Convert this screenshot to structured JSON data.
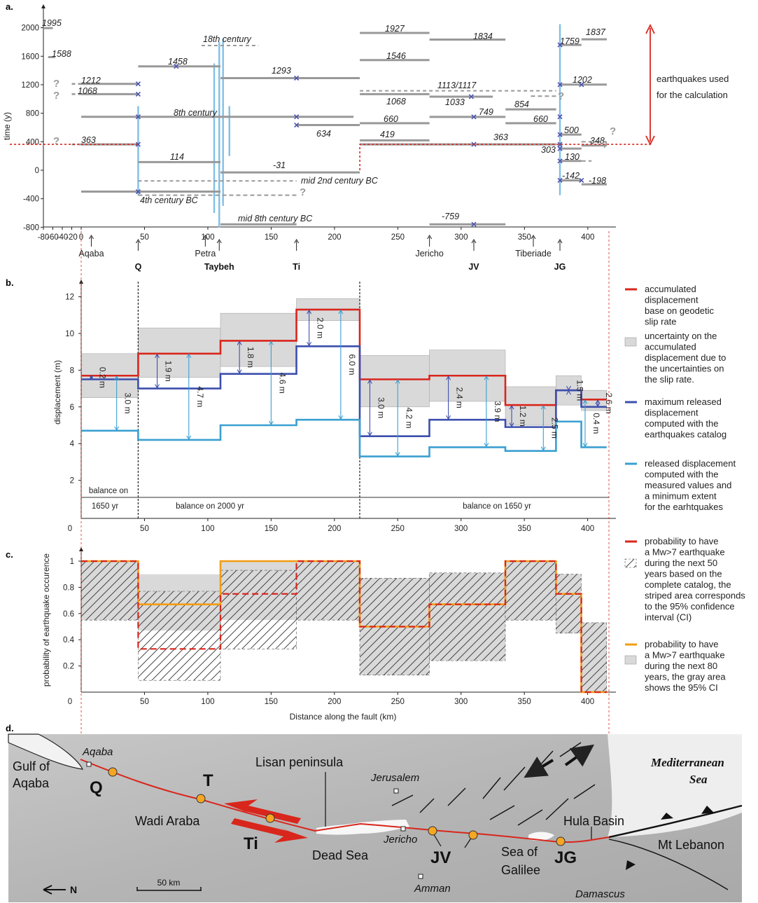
{
  "panels": {
    "a": "a.",
    "b": "b.",
    "c": "c.",
    "d": "d."
  },
  "colors": {
    "geodetic": "#d9261c",
    "catalog": "#3c4fad",
    "measured": "#3a9fd1",
    "prob80": "#f39c12",
    "event_bar": "#999999",
    "rupture": "#7fbfe6",
    "uncertainty": "#d9d9d9"
  },
  "panel_a": {
    "ylabel": "time (y)",
    "yticks": [
      "2000",
      "1600",
      "1200",
      "800",
      "400",
      "0",
      "-400",
      "-800"
    ],
    "xticks": [
      "-80",
      "-60",
      "-40",
      "-20",
      "0",
      "50",
      "100",
      "150",
      "200",
      "250",
      "300",
      "350",
      "400"
    ],
    "event_labels": [
      "1995",
      "1588",
      "1212",
      "1068",
      "363",
      "1458",
      "114",
      "8th century",
      "18th century",
      "1293",
      "634",
      "-31",
      "mid 2nd century BC",
      "4th century BC",
      "mid 8th century BC",
      "1927",
      "1546",
      "660",
      "419",
      "1834",
      "1113/1117",
      "1068",
      "1033",
      "749",
      "854",
      "660",
      "363",
      "-759",
      "1759",
      "1837",
      "1202",
      "500",
      "348",
      "303",
      "130",
      "-142",
      "-198"
    ],
    "qmarks": [
      "?",
      "?",
      "?",
      "?",
      "?",
      "?",
      "?"
    ],
    "annotation": [
      "earthquakes used",
      "for the calculation"
    ],
    "sites": [
      "Aqaba",
      "Q",
      "Petra",
      "Taybeh",
      "Ti",
      "Jericho",
      "JV",
      "Tiberiade",
      "JG"
    ]
  },
  "chart_data": [
    {
      "panel": "a",
      "type": "line",
      "title": "",
      "xlabel": "",
      "ylabel": "time (y)",
      "xlim": [
        -80,
        420
      ],
      "ylim": [
        -800,
        2100
      ],
      "threshold_year": 363,
      "sites_km": {
        "Aqaba": 8,
        "Q": 45,
        "Petra": 98,
        "Taybeh": 109,
        "Ti": 170,
        "Jericho": 275,
        "JV": 310,
        "Tiberiade": 357,
        "JG": 378
      },
      "event_segments": [
        {
          "label": "1995",
          "year": 1995,
          "x": [
            -80,
            -60
          ]
        },
        {
          "label": "1588",
          "year": 1588,
          "x": [
            -70,
            -55
          ]
        },
        {
          "label": "1212",
          "year": 1212,
          "x": [
            0,
            45
          ]
        },
        {
          "label": "1068",
          "year": 1068,
          "x": [
            0,
            45
          ]
        },
        {
          "label": "363",
          "year": 363,
          "x": [
            0,
            45
          ]
        },
        {
          "label": "8th century",
          "year": 750,
          "x": [
            0,
            215
          ]
        },
        {
          "label": "4th century BC",
          "year": -300,
          "x": [
            0,
            110
          ]
        },
        {
          "label": "1458",
          "year": 1458,
          "x": [
            45,
            110
          ]
        },
        {
          "label": "114",
          "year": 114,
          "x": [
            45,
            110
          ]
        },
        {
          "label": "1293",
          "year": 1293,
          "x": [
            110,
            220
          ]
        },
        {
          "label": "634",
          "year": 634,
          "x": [
            170,
            220
          ]
        },
        {
          "label": "-31",
          "year": -31,
          "x": [
            110,
            220
          ]
        },
        {
          "label": "mid 8th century BC",
          "year": -760,
          "x": [
            110,
            170
          ]
        },
        {
          "label": "1927",
          "year": 1927,
          "x": [
            220,
            275
          ]
        },
        {
          "label": "1546",
          "year": 1546,
          "x": [
            220,
            275
          ]
        },
        {
          "label": "660",
          "year": 660,
          "x": [
            220,
            275
          ]
        },
        {
          "label": "419",
          "year": 419,
          "x": [
            220,
            275
          ]
        },
        {
          "label": "1834",
          "year": 1834,
          "x": [
            275,
            335
          ]
        },
        {
          "label": "1068",
          "year": 1068,
          "x": [
            220,
            275
          ]
        },
        {
          "label": "1033",
          "year": 1033,
          "x": [
            275,
            325
          ]
        },
        {
          "label": "749",
          "year": 749,
          "x": [
            275,
            335
          ]
        },
        {
          "label": "854",
          "year": 854,
          "x": [
            335,
            375
          ]
        },
        {
          "label": "660",
          "year": 660,
          "x": [
            335,
            375
          ]
        },
        {
          "label": "363",
          "year": 363,
          "x": [
            220,
            375
          ]
        },
        {
          "label": "-759",
          "year": -759,
          "x": [
            275,
            335
          ]
        },
        {
          "label": "1759",
          "year": 1759,
          "x": [
            378,
            395
          ]
        },
        {
          "label": "1837",
          "year": 1837,
          "x": [
            395,
            415
          ]
        },
        {
          "label": "1202",
          "year": 1202,
          "x": [
            378,
            415
          ]
        },
        {
          "label": "500",
          "year": 500,
          "x": [
            378,
            395
          ]
        },
        {
          "label": "348",
          "year": 348,
          "x": [
            395,
            415
          ]
        },
        {
          "label": "303",
          "year": 303,
          "x": [
            378,
            395
          ]
        },
        {
          "label": "130",
          "year": 130,
          "x": [
            378,
            395
          ]
        },
        {
          "label": "-142",
          "year": -142,
          "x": [
            378,
            395
          ]
        },
        {
          "label": "-198",
          "year": -198,
          "x": [
            395,
            415
          ]
        }
      ],
      "uncertain_segments": [
        {
          "label": "18th century",
          "year": 1750,
          "x": [
            95,
            140
          ]
        },
        {
          "label": "1113/1117",
          "year": 1115,
          "x": [
            220,
            375
          ]
        },
        {
          "label": "mid 2nd century BC",
          "year": -150,
          "x": [
            45,
            170
          ]
        }
      ],
      "rupture_marks_x": [
        45,
        105,
        109,
        112,
        117,
        378
      ]
    },
    {
      "panel": "b",
      "type": "line",
      "title": "",
      "xlabel": "",
      "ylabel": "displacement (m)",
      "xlim": [
        0,
        420
      ],
      "ylim": [
        0,
        13
      ],
      "yticks": [
        2,
        4,
        6,
        8,
        10,
        12
      ],
      "xticks": [
        0,
        50,
        100,
        150,
        200,
        250,
        300,
        350,
        400
      ],
      "balance_labels": [
        "balance on",
        "1650 yr",
        "balance on 2000 yr",
        "balance on 1650 yr"
      ],
      "section_boundaries_km": [
        45,
        220
      ],
      "segments_km": [
        [
          0,
          45
        ],
        [
          45,
          110
        ],
        [
          110,
          170
        ],
        [
          170,
          220
        ],
        [
          220,
          275
        ],
        [
          275,
          335
        ],
        [
          335,
          375
        ],
        [
          375,
          395
        ],
        [
          395,
          415
        ]
      ],
      "series": [
        {
          "name": "accumulated displacement base on geodetic slip rate",
          "values": [
            7.7,
            8.9,
            9.6,
            11.3,
            7.5,
            7.7,
            6.1,
            6.9,
            6.4
          ]
        },
        {
          "name": "maximum released displacement computed with the earthquakes catalog",
          "values": [
            7.5,
            7.0,
            7.8,
            9.3,
            4.4,
            5.3,
            4.9,
            6.9,
            6.0
          ]
        },
        {
          "name": "released displacement computed with the measured values and a minimum extent for the earhtquakes",
          "values": [
            4.7,
            4.2,
            5.0,
            5.3,
            3.3,
            3.8,
            3.6,
            5.2,
            3.8
          ]
        }
      ],
      "uncertainty_band": {
        "lower": [
          6.5,
          7.6,
          8.2,
          10.7,
          6.0,
          6.3,
          5.0,
          6.1,
          5.8
        ],
        "upper": [
          8.9,
          10.3,
          11.1,
          11.9,
          8.8,
          9.1,
          7.1,
          7.7,
          6.9
        ]
      },
      "annotations": [
        {
          "label": "0.2 m",
          "x": 8
        },
        {
          "label": "3.0 m",
          "x": 28
        },
        {
          "label": "1.9 m",
          "x": 60
        },
        {
          "label": "4.7 m",
          "x": 85
        },
        {
          "label": "1.8 m",
          "x": 125
        },
        {
          "label": "4.6 m",
          "x": 150
        },
        {
          "label": "2.0 m",
          "x": 180
        },
        {
          "label": "6.0 m",
          "x": 205
        },
        {
          "label": "3.0 m",
          "x": 228
        },
        {
          "label": "4.2 m",
          "x": 250
        },
        {
          "label": "2.4 m",
          "x": 290
        },
        {
          "label": "3.9 m",
          "x": 320
        },
        {
          "label": "1.2 m",
          "x": 340
        },
        {
          "label": "2.5 m",
          "x": 365
        },
        {
          "label": "1.5 m",
          "x": 385
        },
        {
          "label": "0.4 m",
          "x": 398
        },
        {
          "label": "2.6 m",
          "x": 408
        }
      ]
    },
    {
      "panel": "c",
      "type": "line",
      "title": "",
      "xlabel": "Distance along the fault (km)",
      "ylabel": "probability of earthquake occurence",
      "xlim": [
        0,
        420
      ],
      "ylim": [
        0,
        1.08
      ],
      "yticks": [
        0.2,
        0.4,
        0.6,
        0.8,
        1
      ],
      "xticks": [
        0,
        50,
        100,
        150,
        200,
        250,
        300,
        350,
        400
      ],
      "segments_km": [
        [
          0,
          45
        ],
        [
          45,
          110
        ],
        [
          110,
          170
        ],
        [
          170,
          220
        ],
        [
          220,
          275
        ],
        [
          275,
          335
        ],
        [
          335,
          375
        ],
        [
          375,
          395
        ],
        [
          395,
          415
        ]
      ],
      "series": [
        {
          "name": "probability to have a Mw>7 earthquake during the next 50 years based on the complete catalog",
          "values": [
            1.0,
            0.33,
            0.75,
            1.0,
            0.5,
            0.67,
            1.0,
            0.75,
            0.0
          ]
        },
        {
          "name": "probability to have a Mw>7 earthquake during the next 80 years",
          "values": [
            1.0,
            0.67,
            1.0,
            1.0,
            0.5,
            0.67,
            1.0,
            0.75,
            0.0
          ]
        }
      ],
      "ci50": {
        "lower": [
          0.55,
          0.09,
          0.33,
          0.55,
          0.13,
          0.24,
          0.55,
          0.45,
          0.0
        ],
        "upper": [
          1.0,
          0.77,
          0.93,
          1.0,
          0.87,
          0.91,
          1.0,
          0.9,
          0.53
        ]
      },
      "ci80": {
        "lower": [
          0.55,
          0.47,
          0.55,
          0.55,
          0.13,
          0.24,
          0.55,
          0.45,
          0.0
        ],
        "upper": [
          1.0,
          0.9,
          1.0,
          1.0,
          0.87,
          0.91,
          1.0,
          0.9,
          0.53
        ]
      }
    }
  ],
  "legend_b": [
    [
      "accumulated",
      "displacement",
      "base on geodetic",
      "slip rate"
    ],
    [
      "uncertainty on the",
      "accumulated",
      "displacement due to",
      "the uncertainties on",
      "the slip rate."
    ],
    [
      "maximum released",
      "displacement",
      "computed with the",
      "earthquakes catalog"
    ],
    [
      "released displacement",
      "computed with the",
      "measured values and",
      "a minimum extent",
      "for the earhtquakes"
    ]
  ],
  "legend_c": [
    [
      "probability to have",
      "a Mw>7 earthquake",
      "during the next 50",
      "years based on the",
      "complete catalog, the",
      "striped area corresponds",
      "to the 95% confidence",
      " interval (CI)"
    ],
    [
      "probability to have",
      "a Mw>7 earthquake",
      "during the next 80",
      "years, the gray area",
      "shows the 95% CI"
    ]
  ],
  "map": {
    "labels": [
      "Gulf of",
      "Aqaba",
      "Aqaba",
      "Q",
      "T",
      "Lisan peninsula",
      "Wadi Araba",
      "Ti",
      "Dead Sea",
      "Jerusalem",
      "Jericho",
      "JV",
      "Amman",
      "Sea of",
      "Galilee",
      "JG",
      "Hula Basin",
      "Mediterranean",
      "Sea",
      "Mt Lebanon",
      "Damascus"
    ],
    "north": "N",
    "scale": "50 km"
  }
}
